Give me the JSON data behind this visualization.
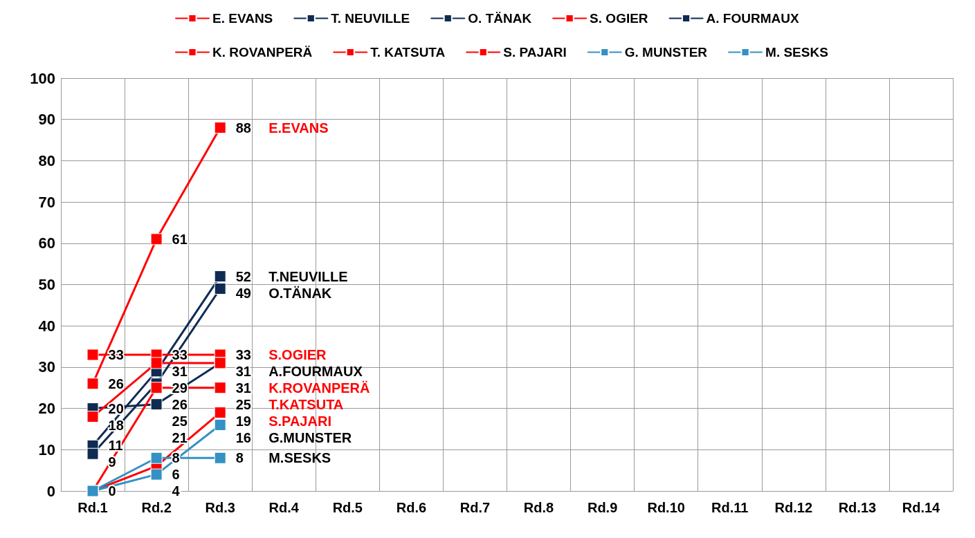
{
  "chart_data": {
    "type": "line",
    "categories": [
      "Rd.1",
      "Rd.2",
      "Rd.3",
      "Rd.4",
      "Rd.5",
      "Rd.6",
      "Rd.7",
      "Rd.8",
      "Rd.9",
      "Rd.10",
      "Rd.11",
      "Rd.12",
      "Rd.13",
      "Rd.14"
    ],
    "series": [
      {
        "name": "E. EVANS",
        "color": "#ff0000",
        "values": [
          26,
          61,
          88,
          null,
          null,
          null,
          null,
          null,
          null,
          null,
          null,
          null,
          null,
          null
        ],
        "value_labels": [
          "26",
          "61",
          "88",
          null,
          null,
          null,
          null,
          null,
          null,
          null,
          null,
          null,
          null,
          null
        ]
      },
      {
        "name": "T. NEUVILLE",
        "color": "#0f2b52",
        "values": [
          11,
          29,
          52,
          null,
          null,
          null,
          null,
          null,
          null,
          null,
          null,
          null,
          null,
          null
        ],
        "value_labels": [
          "11",
          "29",
          "52",
          null,
          null,
          null,
          null,
          null,
          null,
          null,
          null,
          null,
          null,
          null
        ]
      },
      {
        "name": "O. TÄNAK",
        "color": "#0f2b52",
        "values": [
          9,
          26,
          49,
          null,
          null,
          null,
          null,
          null,
          null,
          null,
          null,
          null,
          null,
          null
        ],
        "value_labels": [
          "9",
          "26",
          "49",
          null,
          null,
          null,
          null,
          null,
          null,
          null,
          null,
          null,
          null,
          null
        ]
      },
      {
        "name": "S. OGIER",
        "color": "#ff0000",
        "values": [
          33,
          33,
          33,
          null,
          null,
          null,
          null,
          null,
          null,
          null,
          null,
          null,
          null,
          null
        ],
        "value_labels": [
          "33",
          "33",
          "33",
          null,
          null,
          null,
          null,
          null,
          null,
          null,
          null,
          null,
          null,
          null
        ]
      },
      {
        "name": "A. FOURMAUX",
        "color": "#0f2b52",
        "values": [
          20,
          21,
          31,
          null,
          null,
          null,
          null,
          null,
          null,
          null,
          null,
          null,
          null,
          null
        ],
        "value_labels": [
          "20",
          "21",
          "31",
          null,
          null,
          null,
          null,
          null,
          null,
          null,
          null,
          null,
          null,
          null
        ]
      },
      {
        "name": "K. ROVANPERÄ",
        "color": "#ff0000",
        "values": [
          18,
          31,
          31,
          null,
          null,
          null,
          null,
          null,
          null,
          null,
          null,
          null,
          null,
          null
        ],
        "value_labels": [
          "18",
          "31",
          "31",
          null,
          null,
          null,
          null,
          null,
          null,
          null,
          null,
          null,
          null,
          null
        ]
      },
      {
        "name": "T. KATSUTA",
        "color": "#ff0000",
        "values": [
          0,
          25,
          25,
          null,
          null,
          null,
          null,
          null,
          null,
          null,
          null,
          null,
          null,
          null
        ],
        "value_labels": [
          null,
          "25",
          "25",
          null,
          null,
          null,
          null,
          null,
          null,
          null,
          null,
          null,
          null,
          null
        ]
      },
      {
        "name": "S. PAJARI",
        "color": "#ff0000",
        "values": [
          0,
          6,
          19,
          null,
          null,
          null,
          null,
          null,
          null,
          null,
          null,
          null,
          null,
          null
        ],
        "value_labels": [
          null,
          "6",
          "19",
          null,
          null,
          null,
          null,
          null,
          null,
          null,
          null,
          null,
          null,
          null
        ]
      },
      {
        "name": "G. MUNSTER",
        "color": "#3391c4",
        "values": [
          0,
          4,
          16,
          null,
          null,
          null,
          null,
          null,
          null,
          null,
          null,
          null,
          null,
          null
        ],
        "value_labels": [
          null,
          "4",
          "16",
          null,
          null,
          null,
          null,
          null,
          null,
          null,
          null,
          null,
          null,
          null
        ]
      },
      {
        "name": "M. SESKS",
        "color": "#3391c4",
        "values": [
          0,
          8,
          8,
          null,
          null,
          null,
          null,
          null,
          null,
          null,
          null,
          null,
          null,
          null
        ],
        "value_labels": [
          "0",
          "8",
          "8",
          null,
          null,
          null,
          null,
          null,
          null,
          null,
          null,
          null,
          null,
          null
        ]
      }
    ],
    "annotations": [
      "E.EVANS",
      "T.NEUVILLE",
      "O.TÄNAK",
      "S.OGIER",
      "A.FOURMAUX",
      "K.ROVANPERÄ",
      "T.KATSUTA",
      "S.PAJARI",
      "G.MUNSTER",
      "M.SESKS"
    ],
    "ylim": [
      0,
      100
    ],
    "yticks": [
      0,
      10,
      20,
      30,
      40,
      50,
      60,
      70,
      80,
      90,
      100
    ],
    "grid": true,
    "legend": "top",
    "marker": "square",
    "line_style": "solid"
  }
}
